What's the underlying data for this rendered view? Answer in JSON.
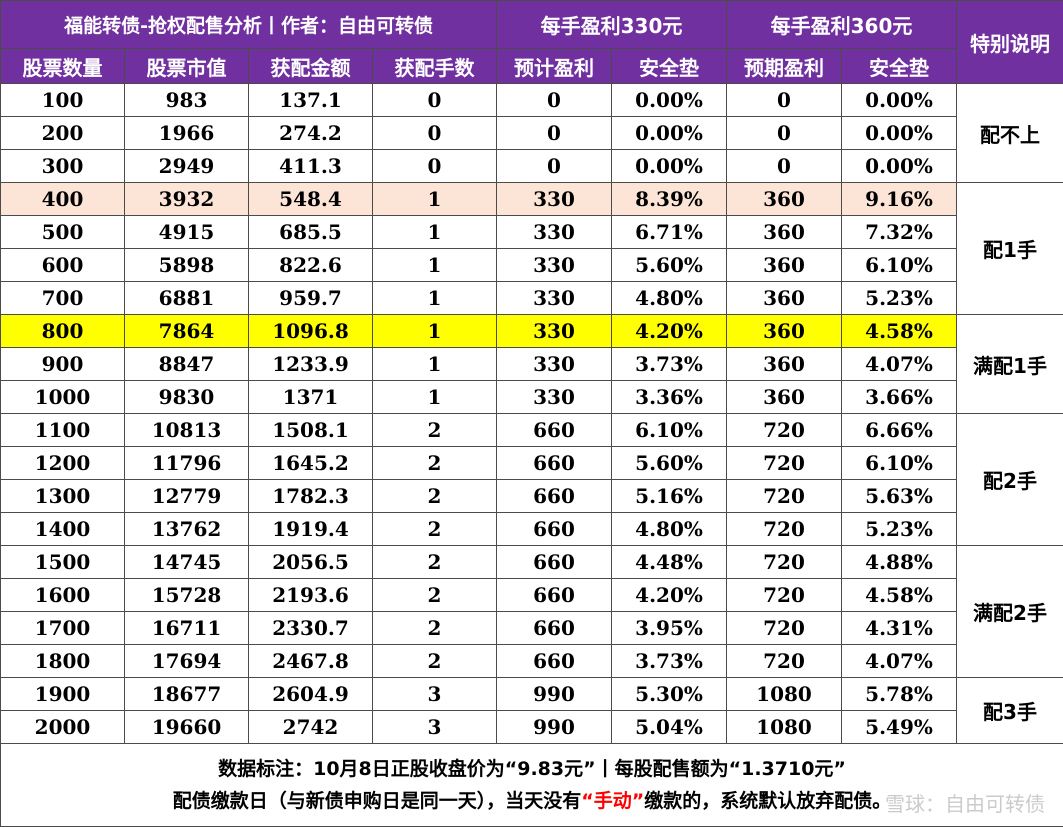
{
  "header": {
    "title": "福能转债-抢权配售分析丨作者：自由可转债",
    "group_330": "每手盈利330元",
    "group_360": "每手盈利360元",
    "note_col": "特别说明",
    "columns": [
      "股票数量",
      "股票市值",
      "获配金额",
      "获配手数",
      "预计盈利",
      "安全垫",
      "预期盈利",
      "安全垫"
    ]
  },
  "rows": [
    [
      "100",
      "983",
      "137.1",
      "0",
      "0",
      "0.00%",
      "0",
      "0.00%"
    ],
    [
      "200",
      "1966",
      "274.2",
      "0",
      "0",
      "0.00%",
      "0",
      "0.00%"
    ],
    [
      "300",
      "2949",
      "411.3",
      "0",
      "0",
      "0.00%",
      "0",
      "0.00%"
    ],
    [
      "400",
      "3932",
      "548.4",
      "1",
      "330",
      "8.39%",
      "360",
      "9.16%"
    ],
    [
      "500",
      "4915",
      "685.5",
      "1",
      "330",
      "6.71%",
      "360",
      "7.32%"
    ],
    [
      "600",
      "5898",
      "822.6",
      "1",
      "330",
      "5.60%",
      "360",
      "6.10%"
    ],
    [
      "700",
      "6881",
      "959.7",
      "1",
      "330",
      "4.80%",
      "360",
      "5.23%"
    ],
    [
      "800",
      "7864",
      "1096.8",
      "1",
      "330",
      "4.20%",
      "360",
      "4.58%"
    ],
    [
      "900",
      "8847",
      "1233.9",
      "1",
      "330",
      "3.73%",
      "360",
      "4.07%"
    ],
    [
      "1000",
      "9830",
      "1371",
      "1",
      "330",
      "3.36%",
      "360",
      "3.66%"
    ],
    [
      "1100",
      "10813",
      "1508.1",
      "2",
      "660",
      "6.10%",
      "720",
      "6.66%"
    ],
    [
      "1200",
      "11796",
      "1645.2",
      "2",
      "660",
      "5.60%",
      "720",
      "6.10%"
    ],
    [
      "1300",
      "12779",
      "1782.3",
      "2",
      "660",
      "5.16%",
      "720",
      "5.63%"
    ],
    [
      "1400",
      "13762",
      "1919.4",
      "2",
      "660",
      "4.80%",
      "720",
      "5.23%"
    ],
    [
      "1500",
      "14745",
      "2056.5",
      "2",
      "660",
      "4.48%",
      "720",
      "4.88%"
    ],
    [
      "1600",
      "15728",
      "2193.6",
      "2",
      "660",
      "4.20%",
      "720",
      "4.58%"
    ],
    [
      "1700",
      "16711",
      "2330.7",
      "2",
      "660",
      "3.95%",
      "720",
      "4.31%"
    ],
    [
      "1800",
      "17694",
      "2467.8",
      "2",
      "660",
      "3.73%",
      "720",
      "4.07%"
    ],
    [
      "1900",
      "18677",
      "2604.9",
      "3",
      "990",
      "5.30%",
      "1080",
      "5.78%"
    ],
    [
      "2000",
      "19660",
      "2742",
      "3",
      "990",
      "5.04%",
      "1080",
      "5.49%"
    ]
  ],
  "notes": [
    "配不上",
    "配1手",
    "满配1手",
    "配2手",
    "满配2手",
    "配3手"
  ],
  "footer": {
    "line1": "数据标注：10月8日正股收盘价为“9.83元”丨每股配售额为“1.3710元”",
    "line2_pre": "配债缴款日（与新债申购日是同一天），当天没有",
    "line2_red": "“手动”",
    "line2_post": "缴款的，系统默认放弃配债。"
  },
  "watermark": "雪球：自由可转债",
  "colors": {
    "header_bg": "#7030a0",
    "header_text": "#ffffff",
    "row_highlight_400": "#fce4d6",
    "row_highlight_800": "#ffff00",
    "emphasis_red": "#ff0000"
  }
}
